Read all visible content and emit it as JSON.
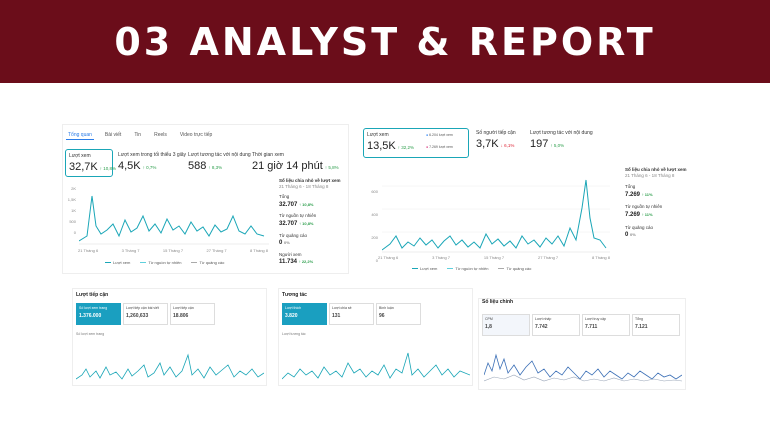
{
  "banner": {
    "title": "03 ANALYST & REPORT"
  },
  "p1": {
    "tabs": [
      "Tổng quan",
      "Bài viết",
      "Tin",
      "Reels",
      "Video trực tiếp"
    ],
    "metrics": [
      {
        "label": "Lượt xem",
        "value": "32,7K",
        "change": "↑ 10,8%"
      },
      {
        "label": "Lượt xem trong tối thiểu 3 giây",
        "value": "4,5K",
        "change": "↑ 0,7%"
      },
      {
        "label": "Lượt tương tác với nội dung",
        "value": "588",
        "change": "↑ 8,3%"
      },
      {
        "label": "Thời gian xem",
        "value": "21 giờ 14 phút",
        "change": "↑ 5,8%"
      }
    ],
    "yticks": [
      "2K",
      "1,5K",
      "1K",
      "500",
      "0"
    ],
    "xticks": [
      "21 Tháng 6",
      "3 Tháng 7",
      "15 Tháng 7",
      "27 Tháng 7",
      "8 Tháng 8"
    ],
    "legend": [
      "Lượt xem",
      "Từ nguồn tự nhiên",
      "Từ quảng cáo"
    ],
    "side": {
      "title": "Số liệu chia nhỏ về lượt xem",
      "range": "21 Tháng 6 - 18 Tháng 8",
      "items": [
        {
          "l": "Tổng",
          "v": "32.707",
          "c": "↑ 10,8%"
        },
        {
          "l": "Từ nguồn tự nhiên",
          "v": "32.707",
          "c": "↑ 10,8%"
        },
        {
          "l": "Từ quảng cáo",
          "v": "0",
          "c": "0%"
        },
        {
          "l": "Người xem",
          "v": "11.734",
          "c": "↑ 22,2%"
        }
      ]
    }
  },
  "p2": {
    "metrics": [
      {
        "label": "Lượt xem",
        "value": "13,5K",
        "change": "↑ 32,2%"
      },
      {
        "label": "Số người tiếp cận",
        "value": "3,7K",
        "change": "↓ 6,1%"
      },
      {
        "label": "Lượt tương tác với nội dung",
        "value": "197",
        "change": "↑ 5,0%"
      }
    ],
    "fb": "6.204 lượt xem",
    "ig": "7.269 lượt xem",
    "yticks": [
      "600",
      "400",
      "200",
      "0"
    ],
    "xticks": [
      "21 Tháng 6",
      "3 Tháng 7",
      "15 Tháng 7",
      "27 Tháng 7",
      "8 Tháng 8"
    ],
    "legend": [
      "Lượt xem",
      "Từ nguồn tự nhiên",
      "Từ quảng cáo"
    ],
    "side": {
      "title": "Số liệu chia nhỏ về lượt xem",
      "range": "21 Tháng 6 - 18 Tháng 8",
      "items": [
        {
          "l": "Tổng",
          "v": "7.269",
          "c": "↑ 11%"
        },
        {
          "l": "Từ nguồn tự nhiên",
          "v": "7.269",
          "c": "↑ 11%"
        },
        {
          "l": "Từ quảng cáo",
          "v": "0",
          "c": "0%"
        }
      ]
    }
  },
  "c1": {
    "title": "Lượt tiếp cận",
    "tiles": [
      {
        "l": "Số lượt xem trang",
        "v": "1.376.000"
      },
      {
        "l": "Lượt tiếp cận bài viết",
        "v": "1,260,633"
      },
      {
        "l": "Lượt tiếp cận",
        "v": "18.806"
      }
    ],
    "sub": "Số lượt xem trang"
  },
  "c2": {
    "title": "Tương tác",
    "tiles": [
      {
        "l": "Lượt thích",
        "v": "3.820"
      },
      {
        "l": "Lượt chia sẻ",
        "v": "131"
      },
      {
        "l": "Bình luận",
        "v": "96"
      }
    ],
    "sub": "Lượt tương tác"
  },
  "c3": {
    "title": "Số liệu chính",
    "tiles": [
      {
        "l": "CPM",
        "v": "1,8"
      },
      {
        "l": "Lượt nhấp",
        "v": "7.742"
      },
      {
        "l": "Lượt truy cập",
        "v": "7.711"
      },
      {
        "l": "Tổng",
        "v": "7.121"
      }
    ]
  }
}
